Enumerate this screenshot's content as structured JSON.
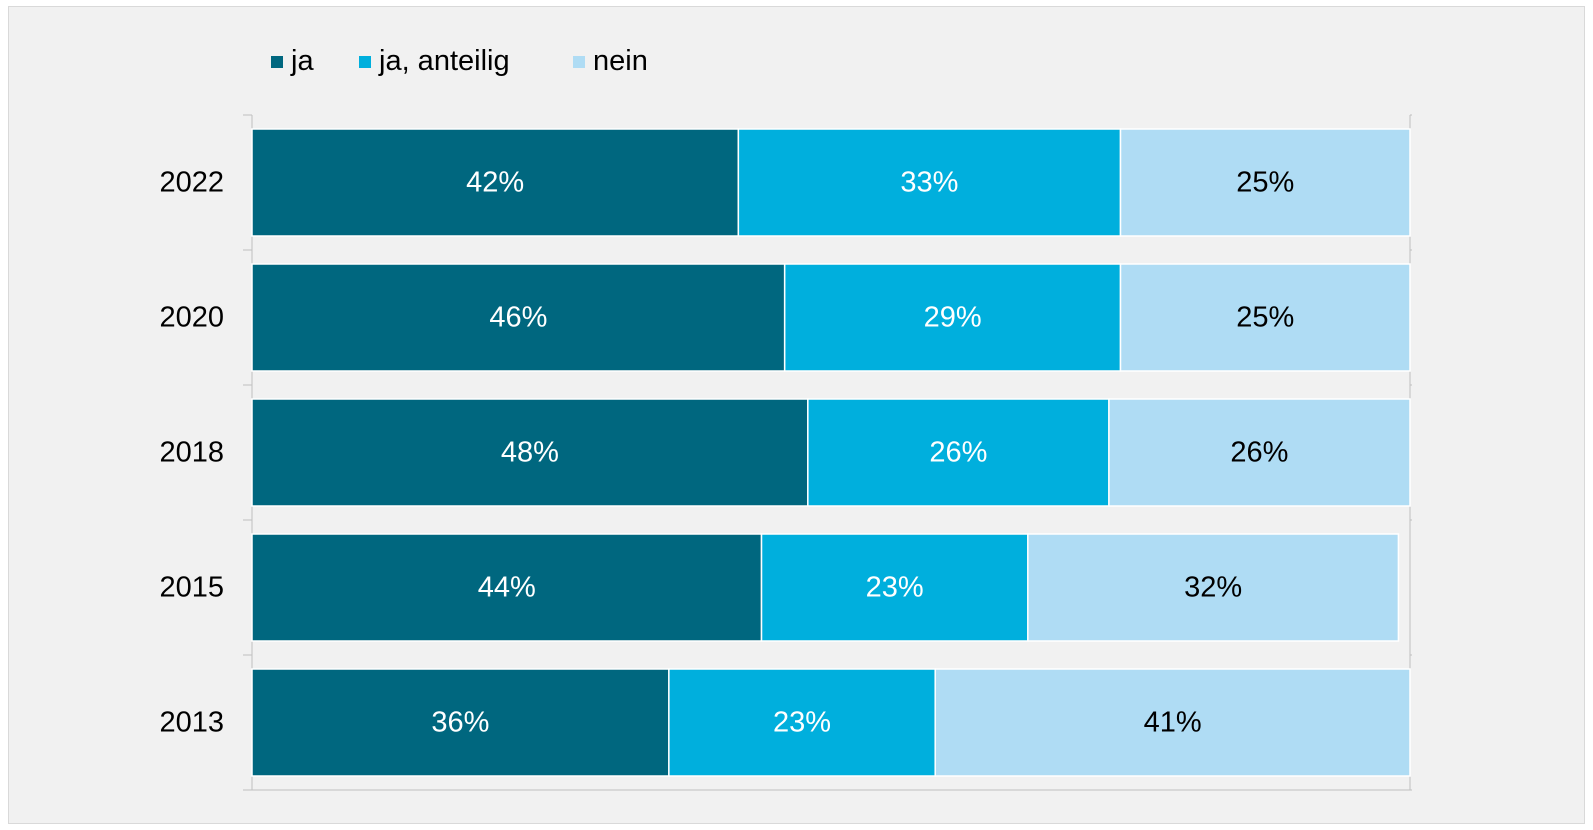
{
  "chart_data": {
    "type": "bar",
    "orientation": "horizontal",
    "stacked": "percent",
    "title": "",
    "xlabel": "",
    "ylabel": "",
    "categories": [
      "2022",
      "2020",
      "2018",
      "2015",
      "2013"
    ],
    "series": [
      {
        "name": "ja",
        "color": "#00677f",
        "label_color": "#ffffff",
        "values": [
          42,
          46,
          48,
          44,
          36
        ],
        "labels": [
          "42%",
          "46%",
          "48%",
          "44%",
          "36%"
        ]
      },
      {
        "name": "ja, anteilig",
        "color": "#00afdd",
        "label_color": "#ffffff",
        "values": [
          33,
          29,
          26,
          23,
          23
        ],
        "labels": [
          "33%",
          "29%",
          "26%",
          "23%",
          "23%"
        ]
      },
      {
        "name": "nein",
        "color": "#afdcf4",
        "label_color": "#000000",
        "values": [
          25,
          25,
          26,
          32,
          41
        ],
        "labels": [
          "25%",
          "25%",
          "26%",
          "32%",
          "41%"
        ]
      }
    ],
    "xlim": [
      0,
      100
    ],
    "grid": false,
    "legend_position": "top-left"
  }
}
